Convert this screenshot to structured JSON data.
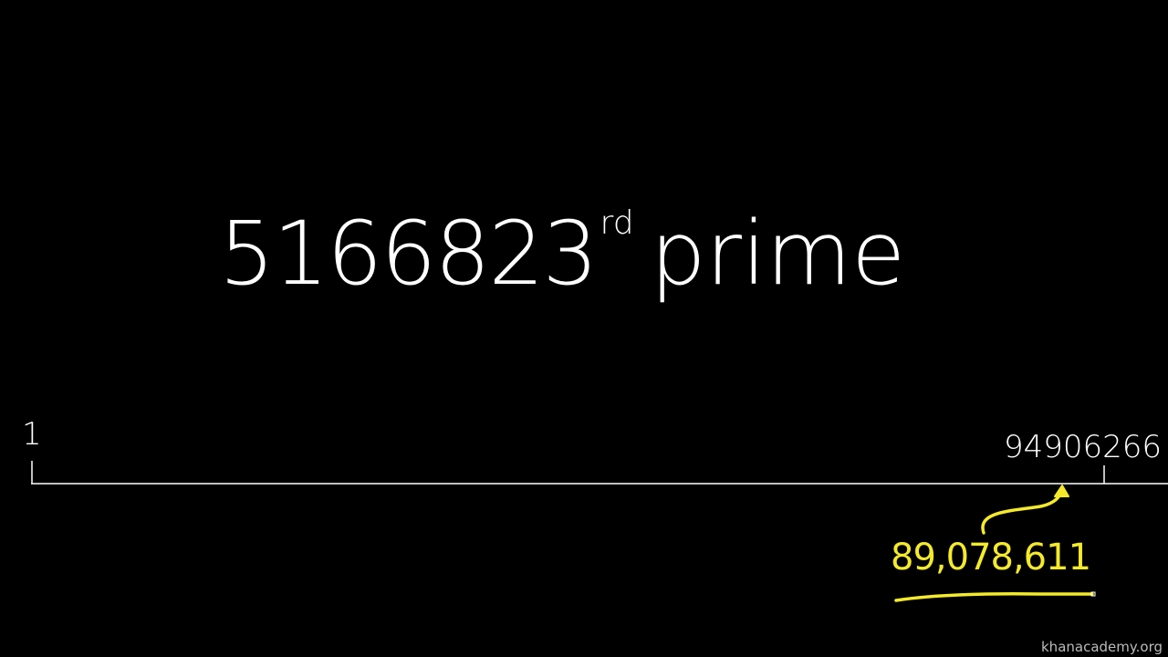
{
  "headline": {
    "number": "5166823",
    "ordinal_suffix": "rd",
    "word": "prime"
  },
  "number_line": {
    "start_label": "1",
    "end_label": "94906266",
    "highlight_value": "89,078,611",
    "line_color": "#ffffff",
    "highlight_color": "#f4ea2a"
  },
  "watermark": "khanacademy.org"
}
